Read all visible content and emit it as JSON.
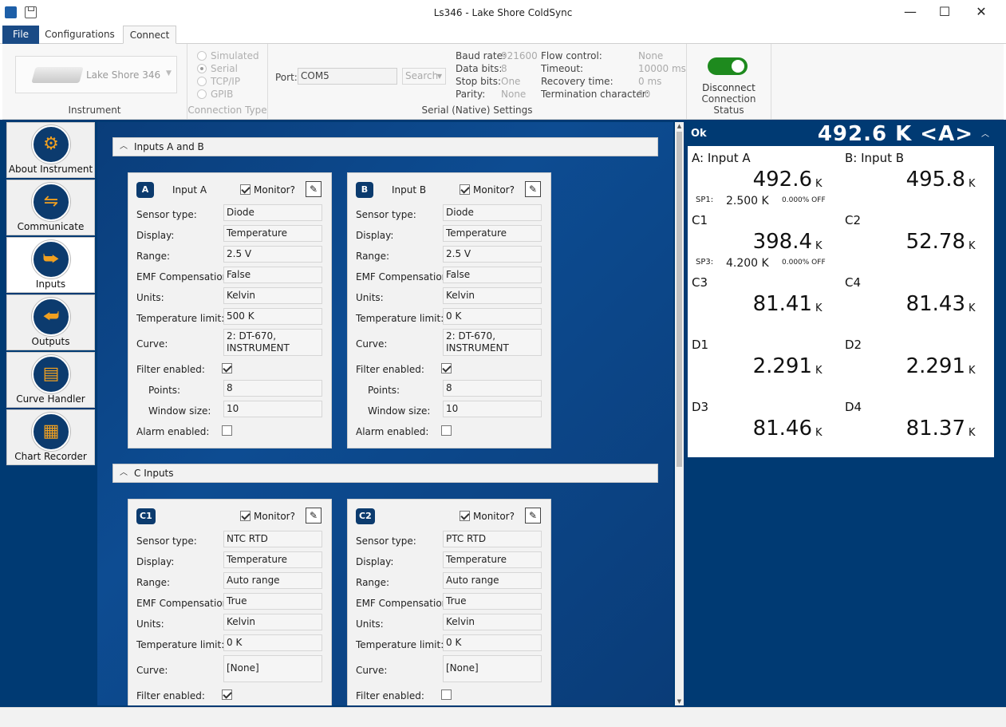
{
  "window": {
    "title": "Ls346 - Lake Shore ColdSync",
    "min": "—",
    "max": "☐",
    "close": "✕"
  },
  "menu": {
    "file": "File",
    "configurations": "Configurations",
    "connect": "Connect"
  },
  "ribbon": {
    "instrument": {
      "name": "Lake Shore 346",
      "group_title": "Instrument"
    },
    "connection_type": {
      "options": [
        "Simulated",
        "Serial",
        "TCP/IP",
        "GPIB"
      ],
      "selected": "Serial",
      "group_title": "Connection Type"
    },
    "serial": {
      "port_label": "Port:",
      "port_value": "COM5",
      "search_label": "Search",
      "baud_label": "Baud rate:",
      "baud_value": "921600",
      "data_label": "Data bits:",
      "data_value": "8",
      "stop_label": "Stop bits:",
      "stop_value": "One",
      "parity_label": "Parity:",
      "parity_value": "None",
      "flow_label": "Flow control:",
      "flow_value": "None",
      "timeout_label": "Timeout:",
      "timeout_value": "10000 ms",
      "recovery_label": "Recovery time:",
      "recovery_value": "0 ms",
      "term_label": "Termination character:",
      "term_value": "10",
      "group_title": "Serial (Native) Settings"
    },
    "status": {
      "button": "Disconnect",
      "group_title": "Connection Status",
      "connected": true,
      "toggle_color": "#1e8a1e"
    }
  },
  "nav": [
    {
      "label": "About Instrument",
      "icon": "gears-icon",
      "glyph": "⚙"
    },
    {
      "label": "Communicate",
      "icon": "usb-icon",
      "glyph": "⇋"
    },
    {
      "label": "Inputs",
      "icon": "input-icon",
      "glyph": "⮩"
    },
    {
      "label": "Outputs",
      "icon": "output-icon",
      "glyph": "⮨"
    },
    {
      "label": "Curve Handler",
      "icon": "curve-icon",
      "glyph": "▤"
    },
    {
      "label": "Chart Recorder",
      "icon": "chart-icon",
      "glyph": "▦"
    }
  ],
  "labels": {
    "sensor": "Sensor type:",
    "display": "Display:",
    "range": "Range:",
    "emf": "EMF Compensation:",
    "units": "Units:",
    "templimit": "Temperature limit:",
    "curve": "Curve:",
    "filter": "Filter enabled:",
    "points": "Points:",
    "window": "Window size:",
    "alarm": "Alarm enabled:",
    "monitor": "Monitor?"
  },
  "sections": {
    "ab": "Inputs A and B",
    "c": "C Inputs"
  },
  "cards": {
    "a": {
      "badge": "A",
      "name": "Input A",
      "sensor": "Diode",
      "display": "Temperature",
      "range": "2.5 V",
      "emf": "False",
      "units": "Kelvin",
      "templimit": "500 K",
      "curve": "2: DT-670, INSTRUMENT",
      "points": "8",
      "window": "10"
    },
    "b": {
      "badge": "B",
      "name": "Input B",
      "sensor": "Diode",
      "display": "Temperature",
      "range": "2.5 V",
      "emf": "False",
      "units": "Kelvin",
      "templimit": "0 K",
      "curve": "2: DT-670, INSTRUMENT",
      "points": "8",
      "window": "10"
    },
    "c1": {
      "badge": "C1",
      "sensor": "NTC RTD",
      "display": "Temperature",
      "range": "Auto range",
      "emf": "True",
      "units": "Kelvin",
      "templimit": "0 K",
      "curve": "[None]"
    },
    "c2": {
      "badge": "C2",
      "sensor": "PTC RTD",
      "display": "Temperature",
      "range": "Auto range",
      "emf": "True",
      "units": "Kelvin",
      "templimit": "0 K",
      "curve": "[None]"
    }
  },
  "readings": {
    "status": "Ok",
    "headline": "492.6 K <A>",
    "cells": [
      {
        "label": "A: Input A",
        "value": "492.6",
        "unit": "K",
        "sp": "SP1:",
        "spv": "2.500 K",
        "spp": "0.000% OFF"
      },
      {
        "label": "B: Input B",
        "value": "495.8",
        "unit": "K"
      },
      {
        "label": "C1",
        "value": "398.4",
        "unit": "K",
        "sp": "SP3:",
        "spv": "4.200 K",
        "spp": "0.000% OFF"
      },
      {
        "label": "C2",
        "value": "52.78",
        "unit": "K"
      },
      {
        "label": "C3",
        "value": "81.41",
        "unit": "K"
      },
      {
        "label": "C4",
        "value": "81.43",
        "unit": "K"
      },
      {
        "label": "D1",
        "value": "2.291",
        "unit": "K"
      },
      {
        "label": "D2",
        "value": "2.291",
        "unit": "K"
      },
      {
        "label": "D3",
        "value": "81.46",
        "unit": "K"
      },
      {
        "label": "D4",
        "value": "81.37",
        "unit": "K"
      }
    ]
  }
}
